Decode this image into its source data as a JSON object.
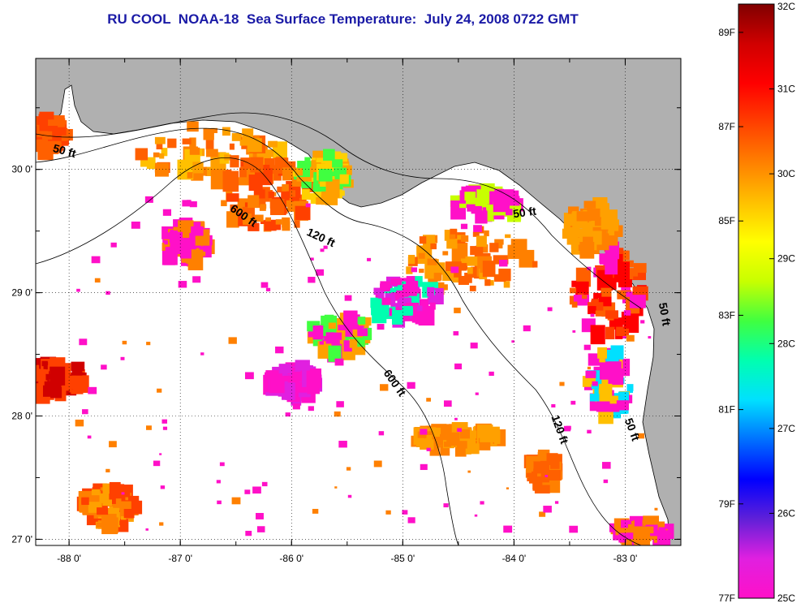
{
  "title": "RU COOL  NOAA-18  Sea Surface Temperature:  July 24, 2008 0722 GMT",
  "map": {
    "lon_range": [
      -88.3,
      -82.5
    ],
    "lat_range": [
      26.95,
      30.9
    ],
    "lon_ticks": [
      {
        "value": -88,
        "label": "-88 0'"
      },
      {
        "value": -87,
        "label": "-87 0'"
      },
      {
        "value": -86,
        "label": "-86 0'"
      },
      {
        "value": -85,
        "label": "-85 0'"
      },
      {
        "value": -84,
        "label": "-84 0'"
      },
      {
        "value": -83,
        "label": "-83 0'"
      }
    ],
    "lat_ticks": [
      {
        "value": 30,
        "label": "30 0'"
      },
      {
        "value": 29,
        "label": "29 0'"
      },
      {
        "value": 28,
        "label": "28 0'"
      },
      {
        "value": 27,
        "label": "27 0'"
      }
    ],
    "land_color": "#b0b0b0",
    "nodata_color": "#ffffff",
    "contour_labels": [
      {
        "text": "50 ft",
        "lon": -88.05,
        "lat": 30.12,
        "angle": 15
      },
      {
        "text": "600 ft",
        "lon": -86.45,
        "lat": 29.6,
        "angle": 35
      },
      {
        "text": "120 ft",
        "lon": -85.75,
        "lat": 29.42,
        "angle": 25
      },
      {
        "text": "50 ft",
        "lon": -83.9,
        "lat": 29.62,
        "angle": -8
      },
      {
        "text": "600 ft",
        "lon": -85.1,
        "lat": 28.25,
        "angle": 55
      },
      {
        "text": "120 ft",
        "lon": -83.62,
        "lat": 27.88,
        "angle": 70
      },
      {
        "text": "50 ft",
        "lon": -82.97,
        "lat": 27.88,
        "angle": 70
      },
      {
        "text": "50 ft",
        "lon": -82.68,
        "lat": 28.82,
        "angle": 80
      }
    ]
  },
  "colorbar": {
    "min_c": 25,
    "max_c": 32,
    "celsius_labels": [
      "25C",
      "26C",
      "27C",
      "28C",
      "29C",
      "30C",
      "31C",
      "32C"
    ],
    "fahrenheit_labels": [
      {
        "value_f": 77,
        "label": "77F"
      },
      {
        "value_f": 79,
        "label": "79F"
      },
      {
        "value_f": 81,
        "label": "81F"
      },
      {
        "value_f": 83,
        "label": "83F"
      },
      {
        "value_f": 85,
        "label": "85F"
      },
      {
        "value_f": 87,
        "label": "87F"
      },
      {
        "value_f": 89,
        "label": "89F"
      }
    ],
    "stops": [
      "#ff10c8",
      "#e020e0",
      "#6020d8",
      "#0000ff",
      "#0070ff",
      "#00e0ff",
      "#00ffb0",
      "#40ff40",
      "#c8ff00",
      "#ffff00",
      "#ffc000",
      "#ff8000",
      "#ff4000",
      "#ff0000",
      "#d00000",
      "#800000"
    ]
  }
}
